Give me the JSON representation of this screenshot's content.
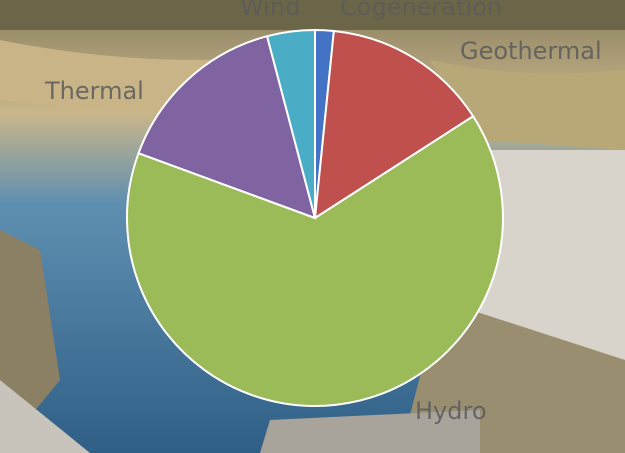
{
  "chart_data": {
    "type": "pie",
    "categories": [
      "Cogeneration",
      "Geothermal",
      "Hydro",
      "Thermal",
      "Wind"
    ],
    "values": [
      1.6,
      14.3,
      64.7,
      15.3,
      4.1
    ],
    "colors": [
      "#4472c4",
      "#c0504d",
      "#9bbb59",
      "#8064a2",
      "#4bacc6"
    ]
  }
}
